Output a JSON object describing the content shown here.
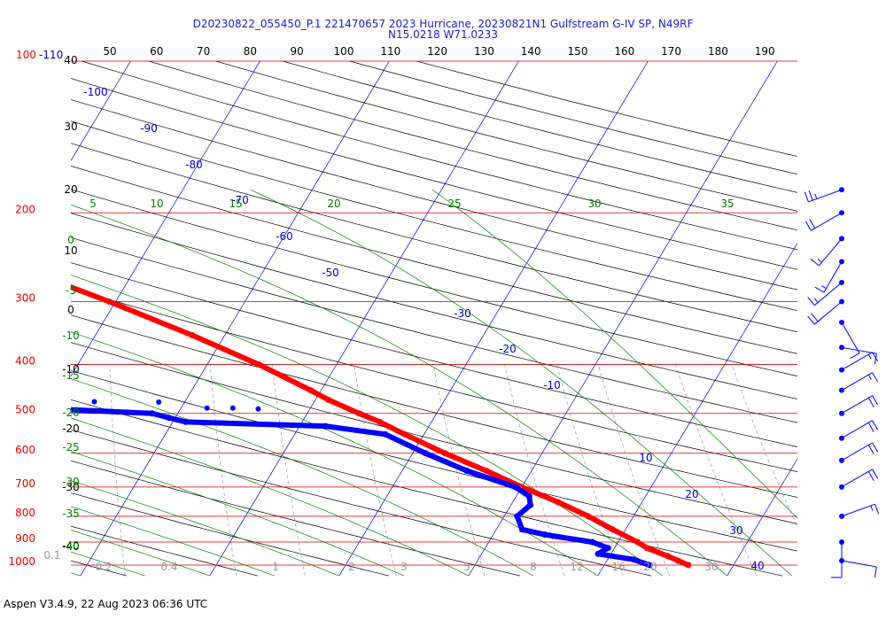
{
  "title": {
    "line1": "D20230822_055450_P.1 221470657 2023 Hurricane, 20230821N1 Gulfstream G-IV SP, N49RF",
    "line2": "N15.0218 W71.0233"
  },
  "footer": "Aspen V3.4.9, 22 Aug 2023  06:36 UTC",
  "colors": {
    "temperature": "#ff0000",
    "dewpoint": "#0000ff",
    "isobar": "#cc0000",
    "isotherm": "#0000cc",
    "dry_adiabat": "#000000",
    "moist_adiabat": "#008000",
    "mixing_ratio": "#888888",
    "wind_barb": "#0000ff"
  },
  "chart_data": {
    "type": "skew-t",
    "pressure_labels": [
      "100",
      "110",
      "200",
      "300",
      "400",
      "500",
      "600",
      "700",
      "800",
      "900",
      "1000"
    ],
    "top_theta_labels": [
      "50",
      "60",
      "70",
      "80",
      "90",
      "100",
      "110",
      "120",
      "130",
      "140",
      "150",
      "160",
      "170",
      "180",
      "190"
    ],
    "left_black_labels": [
      "40",
      "30",
      "20",
      "10",
      "0",
      "-10",
      "-20",
      "-30",
      "-40"
    ],
    "isotherm_labels": [
      "-100",
      "-90",
      "-80",
      "-70",
      "-60",
      "-50",
      "-30",
      "-20",
      "-10",
      "10",
      "20",
      "30",
      "40"
    ],
    "moist_labels_top": [
      "5",
      "10",
      "15",
      "20",
      "25",
      "30",
      "35"
    ],
    "moist_labels_left": [
      "0",
      "-5",
      "-10",
      "-15",
      "-20",
      "-25",
      "-30",
      "-35",
      "-40"
    ],
    "mixing_ratio_labels": [
      "0.1",
      "0.2",
      "0.4",
      "1",
      "2",
      "3",
      "5",
      "8",
      "12",
      "16",
      "20",
      "30"
    ],
    "temperature_profile": [
      {
        "p": 1000,
        "t": 26.5
      },
      {
        "p": 980,
        "t": 25.5
      },
      {
        "p": 960,
        "t": 24.5
      },
      {
        "p": 925,
        "t": 22.5
      },
      {
        "p": 900,
        "t": 21.5
      },
      {
        "p": 850,
        "t": 19.0
      },
      {
        "p": 800,
        "t": 16.5
      },
      {
        "p": 750,
        "t": 13.5
      },
      {
        "p": 700,
        "t": 10.0
      },
      {
        "p": 650,
        "t": 6.5
      },
      {
        "p": 600,
        "t": 2.5
      },
      {
        "p": 550,
        "t": -1.5
      },
      {
        "p": 520,
        "t": -4.0
      },
      {
        "p": 500,
        "t": -6.0
      },
      {
        "p": 470,
        "t": -9.0
      },
      {
        "p": 450,
        "t": -10.8
      },
      {
        "p": 400,
        "t": -16.0
      },
      {
        "p": 350,
        "t": -22.5
      },
      {
        "p": 300,
        "t": -30.5
      },
      {
        "p": 250,
        "t": -40.5
      },
      {
        "p": 200,
        "t": -53.0
      },
      {
        "p": 180,
        "t": -58.0
      }
    ],
    "dewpoint_profile": [
      {
        "p": 1000,
        "td": 23.5
      },
      {
        "p": 975,
        "td": 22.0
      },
      {
        "p": 950,
        "td": 19.0
      },
      {
        "p": 925,
        "td": 19.5
      },
      {
        "p": 900,
        "td": 18.0
      },
      {
        "p": 870,
        "td": 14.0
      },
      {
        "p": 850,
        "td": 12.0
      },
      {
        "p": 800,
        "td": 11.0
      },
      {
        "p": 760,
        "td": 11.5
      },
      {
        "p": 730,
        "td": 11.0
      },
      {
        "p": 700,
        "td": 9.5
      },
      {
        "p": 650,
        "td": 5.0
      },
      {
        "p": 600,
        "td": 1.0
      },
      {
        "p": 550,
        "td": -3.0
      },
      {
        "p": 530,
        "td": -8.0
      },
      {
        "p": 520,
        "td": -19.0
      },
      {
        "p": 510,
        "td": -20.5
      },
      {
        "p": 500,
        "td": -22.0
      },
      {
        "p": 480,
        "td": -38.0
      },
      {
        "p": 460,
        "td": -40.0
      },
      {
        "p": 440,
        "td": -42.0
      },
      {
        "p": 420,
        "td": -41.0
      },
      {
        "p": 400,
        "td": -38.0
      },
      {
        "p": 380,
        "td": -42.0
      },
      {
        "p": 360,
        "td": -57.0
      },
      {
        "p": 340,
        "td": -60.0
      },
      {
        "p": 320,
        "td": -57.0
      },
      {
        "p": 305,
        "td": -49.0
      },
      {
        "p": 290,
        "td": -61.0
      },
      {
        "p": 275,
        "td": -65.0
      },
      {
        "p": 265,
        "td": -64.0
      },
      {
        "p": 255,
        "td": -61.0
      },
      {
        "p": 245,
        "td": -58.0
      },
      {
        "p": 230,
        "td": -62.0
      },
      {
        "p": 220,
        "td": -66.0
      }
    ],
    "dewpoint_scatter": [
      {
        "p": 305,
        "td": -52
      },
      {
        "p": 304,
        "td": -49
      },
      {
        "p": 303,
        "td": -46
      },
      {
        "p": 440,
        "td": -46
      },
      {
        "p": 442,
        "td": -40
      },
      {
        "p": 444,
        "td": -37
      },
      {
        "p": 446,
        "td": -33
      },
      {
        "p": 448,
        "td": -30
      },
      {
        "p": 470,
        "td": -36
      },
      {
        "p": 472,
        "td": -32
      },
      {
        "p": 474,
        "td": -27
      },
      {
        "p": 475,
        "td": -22
      },
      {
        "p": 488,
        "td": -16
      },
      {
        "p": 488,
        "td": -18
      },
      {
        "p": 490,
        "td": -14
      }
    ],
    "isolated_points": [
      {
        "p": 180,
        "t": -80,
        "color": "dewpoint"
      },
      {
        "p": 180,
        "t": -65,
        "color": "temperature"
      }
    ],
    "wind_barbs": [
      {
        "p": 180,
        "dir": 250,
        "speed": 25
      },
      {
        "p": 200,
        "dir": 240,
        "speed": 20
      },
      {
        "p": 225,
        "dir": 220,
        "speed": 15
      },
      {
        "p": 250,
        "dir": 210,
        "speed": 15
      },
      {
        "p": 275,
        "dir": 230,
        "speed": 15
      },
      {
        "p": 300,
        "dir": 230,
        "speed": 20
      },
      {
        "p": 330,
        "dir": 150,
        "speed": 10
      },
      {
        "p": 370,
        "dir": 100,
        "speed": 10
      },
      {
        "p": 410,
        "dir": 60,
        "speed": 15
      },
      {
        "p": 450,
        "dir": 60,
        "speed": 15
      },
      {
        "p": 500,
        "dir": 60,
        "speed": 20
      },
      {
        "p": 560,
        "dir": 60,
        "speed": 20
      },
      {
        "p": 620,
        "dir": 60,
        "speed": 20
      },
      {
        "p": 700,
        "dir": 60,
        "speed": 20
      },
      {
        "p": 800,
        "dir": 70,
        "speed": 15
      },
      {
        "p": 900,
        "dir": 180,
        "speed": 10
      },
      {
        "p": 980,
        "dir": 100,
        "speed": 10
      }
    ]
  }
}
